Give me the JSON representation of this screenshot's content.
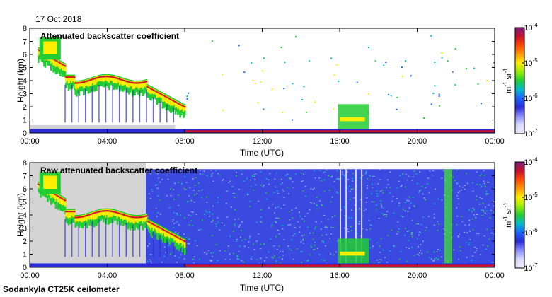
{
  "date_label": "17 Oct 2018",
  "footer_label": "Sodankyla CT25K ceilometer",
  "colorbar": {
    "unit_base": "m",
    "unit_exp1": "-1",
    "unit_mid": "sr",
    "unit_exp2": "-1",
    "tick_labels": [
      {
        "base": "10",
        "exp": "-4"
      },
      {
        "base": "10",
        "exp": "-5"
      },
      {
        "base": "10",
        "exp": "-6"
      },
      {
        "base": "10",
        "exp": "-7"
      }
    ],
    "colors": [
      "#7a1f7a",
      "#c8102e",
      "#ff4500",
      "#ff9900",
      "#ffee00",
      "#99ee00",
      "#22cc33",
      "#00bbcc",
      "#1e64ff",
      "#2b2bd6",
      "#8a8aff",
      "#d8d8ff",
      "#eeeeff"
    ]
  },
  "chart_data": [
    {
      "type": "heatmap",
      "title": "Attenuated backscatter coefficient",
      "xlabel": "Time (UTC)",
      "ylabel": "Height (km)",
      "x_ticks": [
        "00:00",
        "04:00",
        "08:00",
        "12:00",
        "16:00",
        "20:00",
        "00:00"
      ],
      "y_ticks": [
        "0",
        "1",
        "2",
        "3",
        "4",
        "5",
        "6",
        "7",
        "8"
      ],
      "xlim_hours": [
        0,
        24
      ],
      "ylim_km": [
        0,
        8
      ],
      "colorbar_range": [
        1e-07,
        0.0001
      ],
      "colorbar_scale": "log",
      "noise": false
    },
    {
      "type": "heatmap",
      "title": "Raw attenuated backscatter coefficient",
      "xlabel": "Time (UTC)",
      "ylabel": "Height (km)",
      "x_ticks": [
        "00:00",
        "04:00",
        "08:00",
        "12:00",
        "16:00",
        "20:00",
        "00:00"
      ],
      "y_ticks": [
        "0",
        "1",
        "2",
        "3",
        "4",
        "5",
        "6",
        "7",
        "8"
      ],
      "xlim_hours": [
        0,
        24
      ],
      "ylim_km": [
        0,
        8
      ],
      "colorbar_range": [
        1e-07,
        0.0001
      ],
      "colorbar_scale": "log",
      "noise": true
    }
  ]
}
